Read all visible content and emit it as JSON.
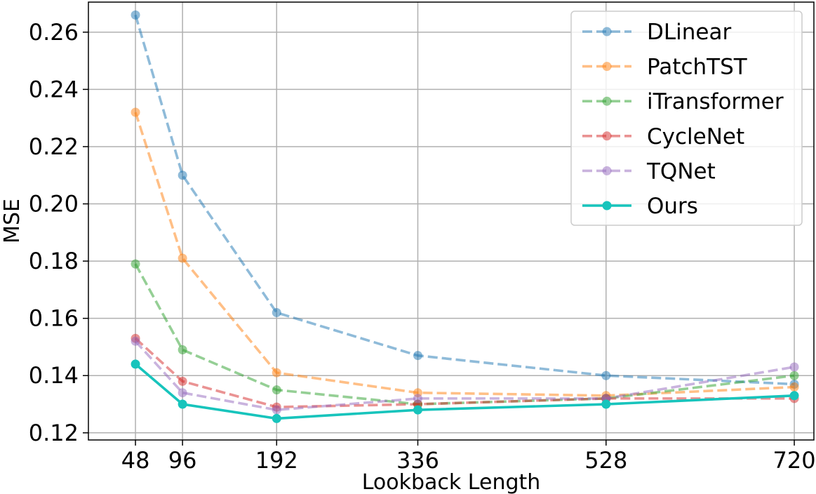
{
  "chart_data": {
    "type": "line",
    "title": "",
    "xlabel": "Lookback Length",
    "ylabel": "MSE",
    "x": [
      48,
      96,
      192,
      336,
      528,
      720
    ],
    "xlim": [
      0,
      740
    ],
    "ylim": [
      0.1175,
      0.2705
    ],
    "yticks": [
      0.12,
      0.14,
      0.16,
      0.18,
      0.2,
      0.22,
      0.24,
      0.26
    ],
    "ytick_labels": [
      "0.12",
      "0.14",
      "0.16",
      "0.18",
      "0.20",
      "0.22",
      "0.24",
      "0.26"
    ],
    "xtick_labels": [
      "48",
      "96",
      "192",
      "336",
      "528",
      "720"
    ],
    "grid": true,
    "legend_position": "top-right",
    "series": [
      {
        "name": "DLinear",
        "values": [
          0.266,
          0.21,
          0.162,
          0.147,
          0.14,
          0.137
        ],
        "color": "#1f77b4",
        "dashed": true
      },
      {
        "name": "PatchTST",
        "values": [
          0.232,
          0.181,
          0.141,
          0.134,
          0.133,
          0.136
        ],
        "color": "#ff7f0e",
        "dashed": true
      },
      {
        "name": "iTransformer",
        "values": [
          0.179,
          0.149,
          0.135,
          0.13,
          0.132,
          0.14
        ],
        "color": "#2ca02c",
        "dashed": true
      },
      {
        "name": "CycleNet",
        "values": [
          0.153,
          0.138,
          0.129,
          0.13,
          0.132,
          0.132
        ],
        "color": "#d62728",
        "dashed": true
      },
      {
        "name": "TQNet",
        "values": [
          0.152,
          0.134,
          0.128,
          0.132,
          0.132,
          0.143
        ],
        "color": "#9467bd",
        "dashed": true
      },
      {
        "name": "Ours",
        "values": [
          0.144,
          0.13,
          0.125,
          0.128,
          0.13,
          0.133
        ],
        "color": "#17c4bc",
        "dashed": false
      }
    ]
  }
}
